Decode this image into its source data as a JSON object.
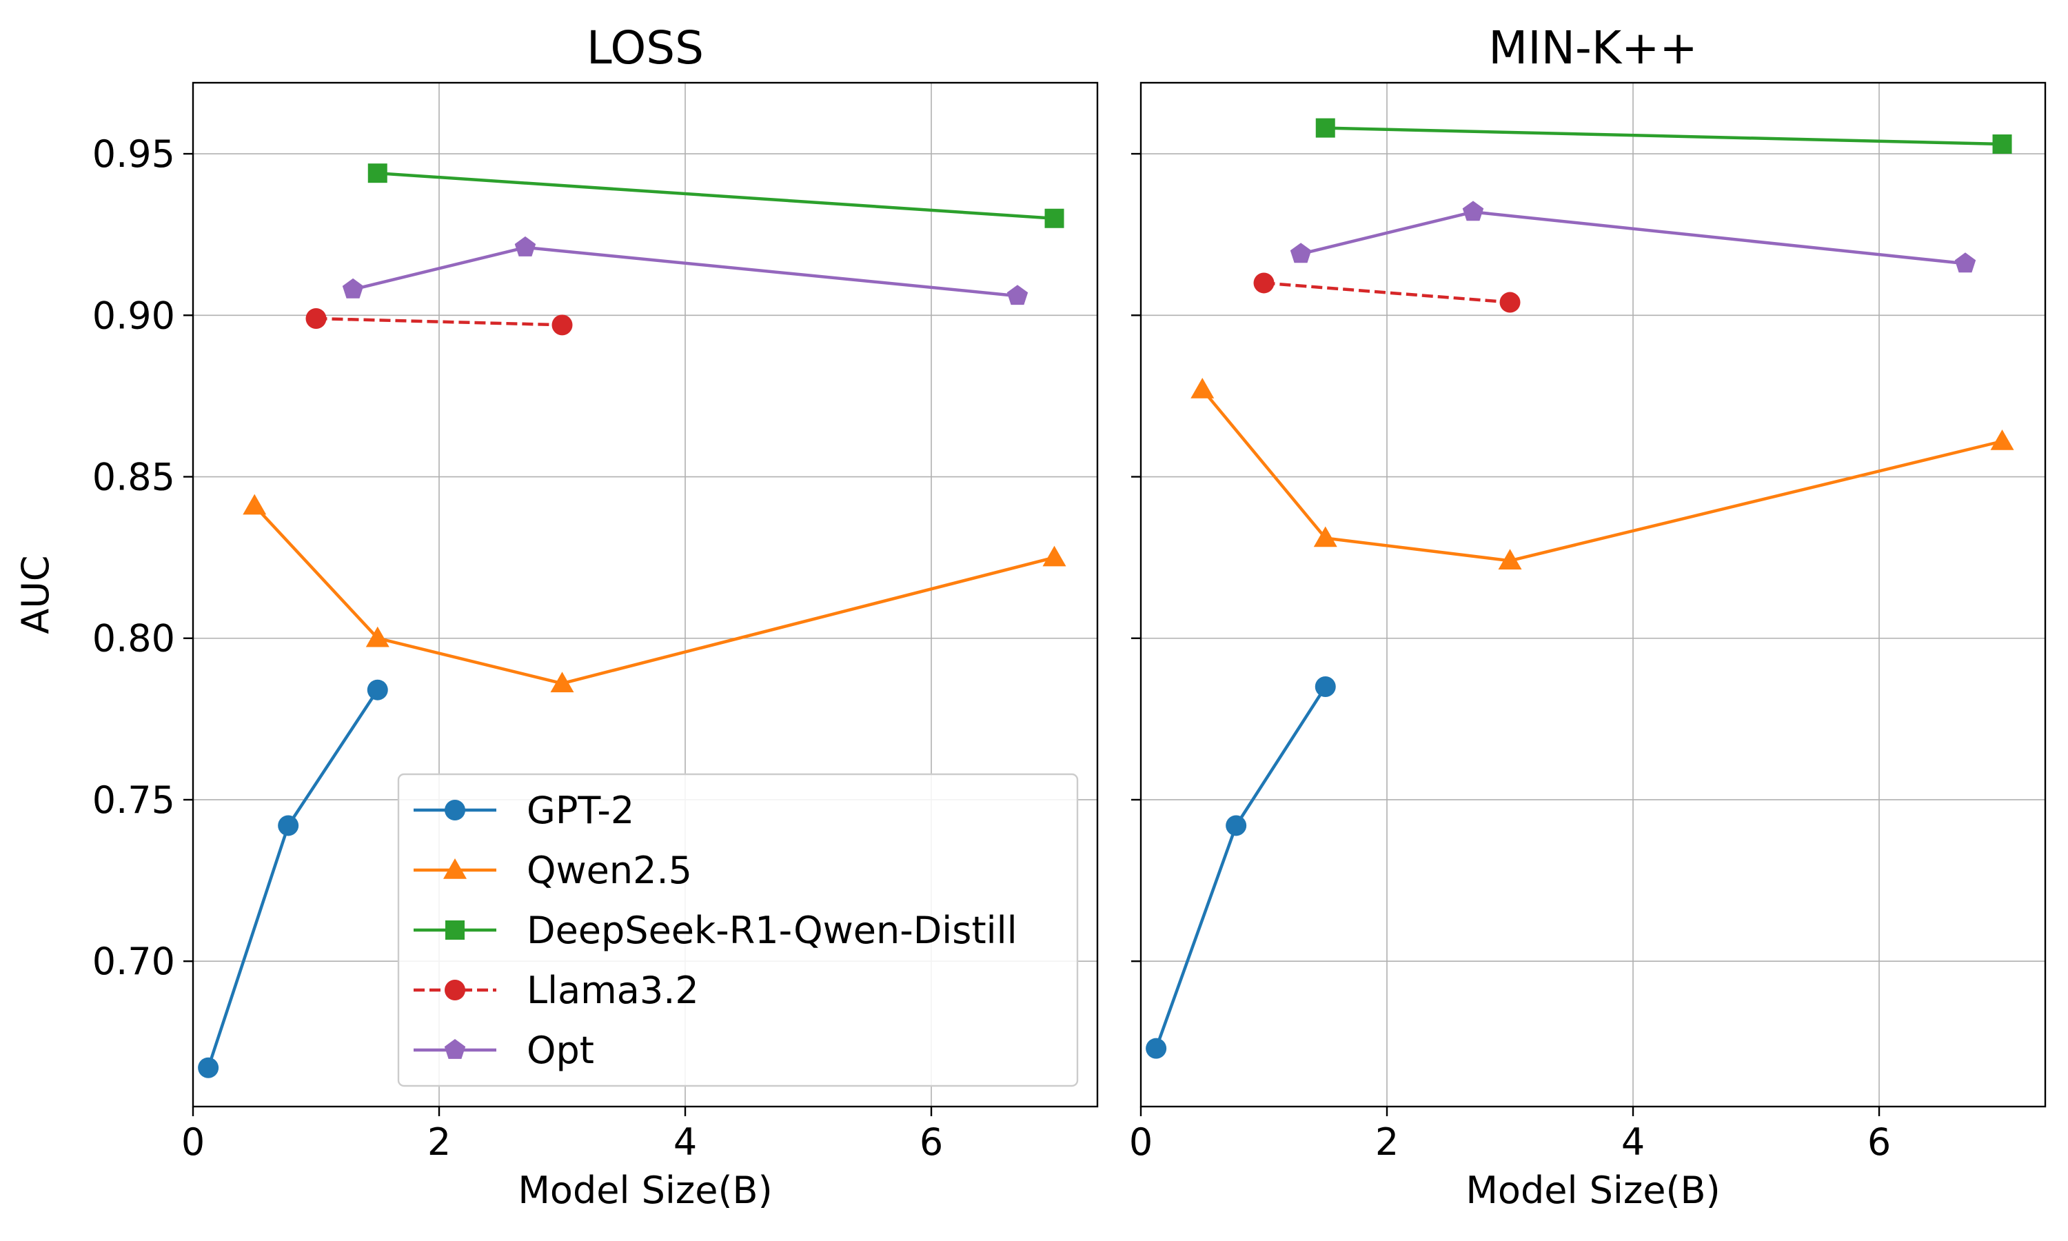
{
  "chart_data": [
    {
      "type": "line",
      "title": "LOSS",
      "xlabel": "Model Size(B)",
      "ylabel": "AUC",
      "xlim": [
        0,
        7.35
      ],
      "ylim": [
        0.655,
        0.972
      ],
      "xticks": [
        0,
        2,
        4,
        6
      ],
      "yticks": [
        0.7,
        0.75,
        0.8,
        0.85,
        0.9,
        0.95
      ],
      "grid": true,
      "legend": "lower-right",
      "series": [
        {
          "name": "GPT-2",
          "color": "#1f77b4",
          "marker": "circle",
          "linestyle": "solid",
          "x": [
            0.124,
            0.774,
            1.5
          ],
          "y": [
            0.667,
            0.742,
            0.784
          ]
        },
        {
          "name": "Qwen2.5",
          "color": "#ff7f0e",
          "marker": "triangle",
          "linestyle": "solid",
          "x": [
            0.5,
            1.5,
            3.0,
            7.0
          ],
          "y": [
            0.841,
            0.8,
            0.786,
            0.825
          ]
        },
        {
          "name": "DeepSeek-R1-Qwen-Distill",
          "color": "#2ca02c",
          "marker": "square",
          "linestyle": "solid",
          "x": [
            1.5,
            7.0
          ],
          "y": [
            0.944,
            0.93
          ]
        },
        {
          "name": "Llama3.2",
          "color": "#d62728",
          "marker": "circle",
          "linestyle": "dashed",
          "x": [
            1.0,
            3.0
          ],
          "y": [
            0.899,
            0.897
          ]
        },
        {
          "name": "Opt",
          "color": "#9467bd",
          "marker": "pentagon",
          "linestyle": "solid",
          "x": [
            1.3,
            2.7,
            6.7
          ],
          "y": [
            0.908,
            0.921,
            0.906
          ]
        }
      ]
    },
    {
      "type": "line",
      "title": "MIN-K++",
      "xlabel": "Model Size(B)",
      "ylabel": "",
      "xlim": [
        0,
        7.35
      ],
      "ylim": [
        0.655,
        0.972
      ],
      "xticks": [
        0,
        2,
        4,
        6
      ],
      "yticks": [
        0.7,
        0.75,
        0.8,
        0.85,
        0.9,
        0.95
      ],
      "grid": true,
      "series": [
        {
          "name": "GPT-2",
          "color": "#1f77b4",
          "marker": "circle",
          "linestyle": "solid",
          "x": [
            0.124,
            0.774,
            1.5
          ],
          "y": [
            0.673,
            0.742,
            0.785
          ]
        },
        {
          "name": "Qwen2.5",
          "color": "#ff7f0e",
          "marker": "triangle",
          "linestyle": "solid",
          "x": [
            0.5,
            1.5,
            3.0,
            7.0
          ],
          "y": [
            0.877,
            0.831,
            0.824,
            0.861
          ]
        },
        {
          "name": "DeepSeek-R1-Qwen-Distill",
          "color": "#2ca02c",
          "marker": "square",
          "linestyle": "solid",
          "x": [
            1.5,
            7.0
          ],
          "y": [
            0.958,
            0.953
          ]
        },
        {
          "name": "Llama3.2",
          "color": "#d62728",
          "marker": "circle",
          "linestyle": "dashed",
          "x": [
            1.0,
            3.0
          ],
          "y": [
            0.91,
            0.904
          ]
        },
        {
          "name": "Opt",
          "color": "#9467bd",
          "marker": "pentagon",
          "linestyle": "solid",
          "x": [
            1.3,
            2.7,
            6.7
          ],
          "y": [
            0.919,
            0.932,
            0.916
          ]
        }
      ]
    }
  ]
}
